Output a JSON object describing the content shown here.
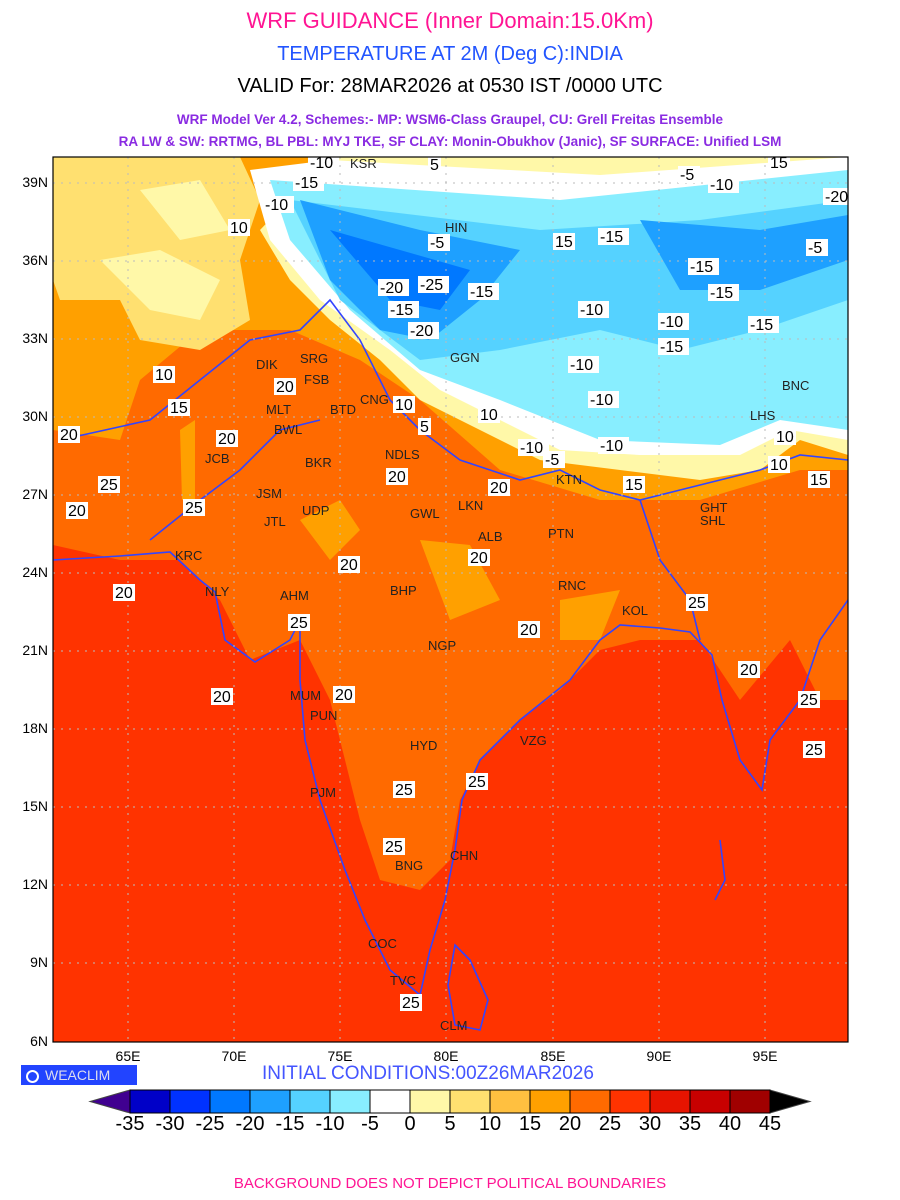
{
  "header": {
    "title": "WRF GUIDANCE (Inner Domain:15.0Km)",
    "subtitle": "TEMPERATURE AT 2M (Deg C):INDIA",
    "valid": "VALID For: 28MAR2026 at 0530 IST /0000 UTC",
    "schemes_line1": "WRF Model Ver 4.2, Schemes:- MP: WSM6-Class Graupel, CU: Grell Freitas Ensemble",
    "schemes_line2": "RA LW & SW: RRTMG, BL PBL: MYJ TKE, SF CLAY: Monin-Obukhov (Janic), SF SURFACE: Unified LSM"
  },
  "axes": {
    "lat_labels": [
      "39N",
      "36N",
      "33N",
      "30N",
      "27N",
      "24N",
      "21N",
      "18N",
      "15N",
      "12N",
      "9N",
      "6N"
    ],
    "lon_labels": [
      "65E",
      "70E",
      "75E",
      "80E",
      "85E",
      "90E",
      "95E"
    ]
  },
  "cities": [
    "KSR",
    "HIN",
    "SRG",
    "FSB",
    "DIK",
    "MLT",
    "BWL",
    "BTD",
    "CNG",
    "JCB",
    "BKR",
    "NDLS",
    "JSM",
    "UDP",
    "JTL",
    "GWL",
    "LKN",
    "ALB",
    "PTN",
    "KTN",
    "KRC",
    "NLY",
    "AHM",
    "BHP",
    "RNC",
    "KOL",
    "NGP",
    "MUM",
    "PUN",
    "HYD",
    "VZG",
    "PJM",
    "BNG",
    "CHN",
    "COC",
    "TVC",
    "CLM",
    "GHT",
    "SHL",
    "LHS",
    "GGN",
    "BNC"
  ],
  "contour_labels": [
    "-10",
    "5",
    "15",
    "-10",
    "10",
    "-15",
    "-20",
    "-5",
    "-15",
    "-25",
    "-15",
    "-20",
    "-10",
    "-15",
    "-10",
    "-15",
    "-5",
    "-10",
    "-5",
    "-20",
    "15",
    "10",
    "5",
    "10",
    "15",
    "10",
    "20",
    "-10",
    "-15",
    "-15",
    "-10",
    "-15",
    "-10",
    "-10",
    "-5",
    "15",
    "10",
    "20",
    "20",
    "25",
    "25",
    "20",
    "20",
    "20",
    "20",
    "20",
    "25",
    "25",
    "20",
    "20",
    "20",
    "25",
    "25",
    "25",
    "20",
    "25",
    "25",
    "15",
    "10",
    "20",
    "25"
  ],
  "footer": {
    "logo": "WEACLIM",
    "initial_conditions": "INITIAL CONDITIONS:00Z26MAR2026",
    "disclaimer": "BACKGROUND DOES NOT DEPICT POLITICAL BOUNDARIES"
  },
  "colorbar": {
    "labels": [
      "-35",
      "-30",
      "-25",
      "-20",
      "-15",
      "-10",
      "-5",
      "0",
      "5",
      "10",
      "15",
      "20",
      "25",
      "30",
      "35",
      "40",
      "45"
    ],
    "colors": [
      "#0000c8",
      "#0032ff",
      "#0078ff",
      "#1ea0ff",
      "#55d2ff",
      "#88eeff",
      "#ffffff",
      "#fff8a8",
      "#ffe070",
      "#ffc040",
      "#ffa000",
      "#ff6a00",
      "#ff3300",
      "#e61400",
      "#c80000",
      "#a00000"
    ],
    "under_color": "#400090",
    "over_color": "#000000"
  }
}
